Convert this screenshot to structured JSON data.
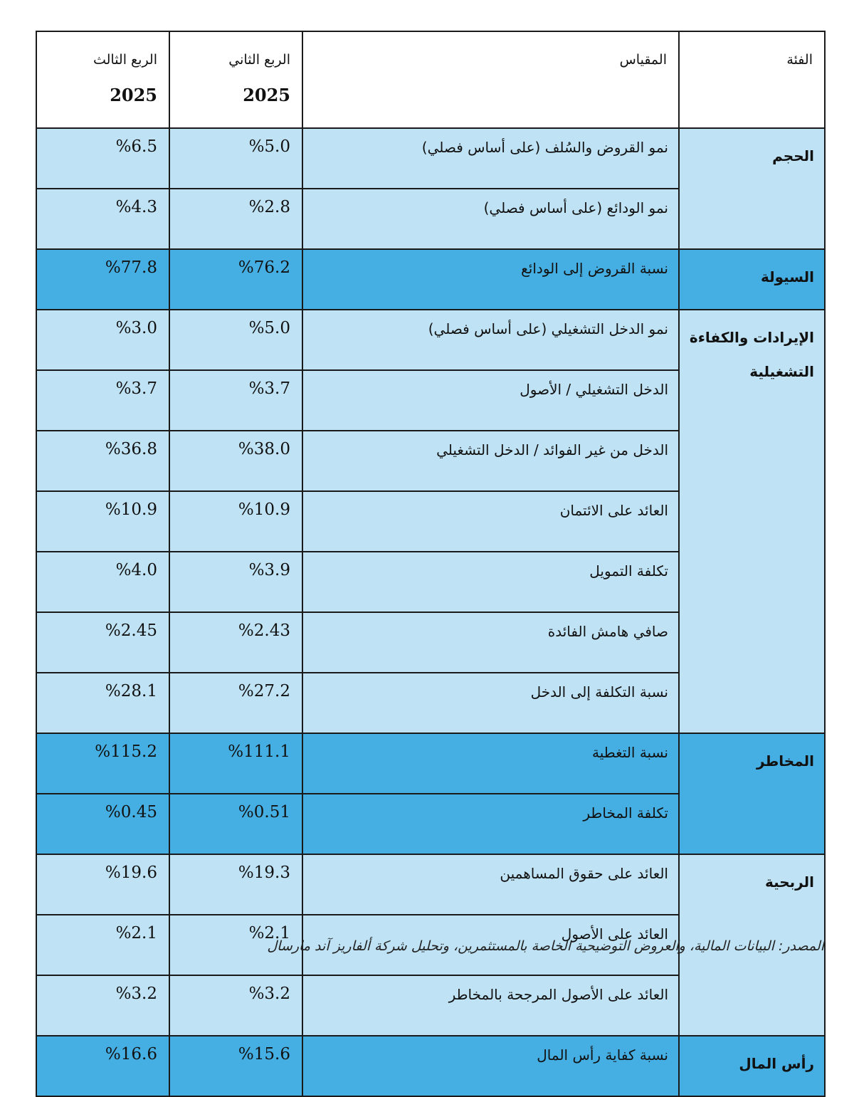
{
  "header": {
    "category": "الفئة",
    "metric": "المقياس",
    "q2": {
      "label": "الربع الثاني",
      "year": "2025"
    },
    "q3": {
      "label": "الربع الثالث",
      "year": "2025"
    }
  },
  "colors": {
    "light_row": "#bfe3f5",
    "highlight_row": "#45afe3"
  },
  "groups": [
    {
      "category": "الحجم",
      "highlight": false,
      "rows": [
        {
          "metric": "نمو القروض والسُلف (على أساس فصلي)",
          "q2": "%5.0",
          "q3": "%6.5"
        },
        {
          "metric": "نمو الودائع (على أساس فصلي)",
          "q2": "%2.8",
          "q3": "%4.3"
        }
      ]
    },
    {
      "category": "السيولة",
      "highlight": true,
      "rows": [
        {
          "metric": "نسبة القروض إلى الودائع",
          "q2": "%76.2",
          "q3": "%77.8"
        }
      ]
    },
    {
      "category": "الإيرادات والكفاءة التشغيلية",
      "highlight": false,
      "rows": [
        {
          "metric": "نمو الدخل التشغيلي (على أساس فصلي)",
          "q2": "%5.0",
          "q3": "%3.0"
        },
        {
          "metric": "الدخل التشغيلي / الأصول",
          "q2": "%3.7",
          "q3": "%3.7"
        },
        {
          "metric": "الدخل من غير الفوائد / الدخل التشغيلي",
          "q2": "%38.0",
          "q3": "%36.8"
        },
        {
          "metric": "العائد على الائتمان",
          "q2": "%10.9",
          "q3": "%10.9"
        },
        {
          "metric": "تكلفة التمويل",
          "q2": "%3.9",
          "q3": "%4.0"
        },
        {
          "metric": "صافي هامش الفائدة",
          "q2": "%2.43",
          "q3": "%2.45"
        },
        {
          "metric": "نسبة التكلفة إلى الدخل",
          "q2": "%27.2",
          "q3": "%28.1"
        }
      ]
    },
    {
      "category": "المخاطر",
      "highlight": true,
      "rows": [
        {
          "metric": "نسبة التغطية",
          "q2": "%111.1",
          "q3": "%115.2"
        },
        {
          "metric": "تكلفة المخاطر",
          "q2": "%0.51",
          "q3": "%0.45"
        }
      ]
    },
    {
      "category": "الربحية",
      "highlight": false,
      "rows": [
        {
          "metric": "العائد على حقوق المساهمين",
          "q2": "%19.3",
          "q3": "%19.6"
        },
        {
          "metric": "العائد على الأصول",
          "q2": "%2.1",
          "q3": "%2.1"
        },
        {
          "metric": "العائد على الأصول المرجحة بالمخاطر",
          "q2": "%3.2",
          "q3": "%3.2"
        }
      ]
    },
    {
      "category": "رأس المال",
      "highlight": true,
      "rows": [
        {
          "metric": "نسبة كفاية رأس المال",
          "q2": "%15.6",
          "q3": "%16.6"
        }
      ]
    }
  ],
  "source": "المصدر: البيانات المالية، والعروض التوضيحية الخاصة بالمستثمرين، وتحليل شركة ألفاريز آند مارسال"
}
